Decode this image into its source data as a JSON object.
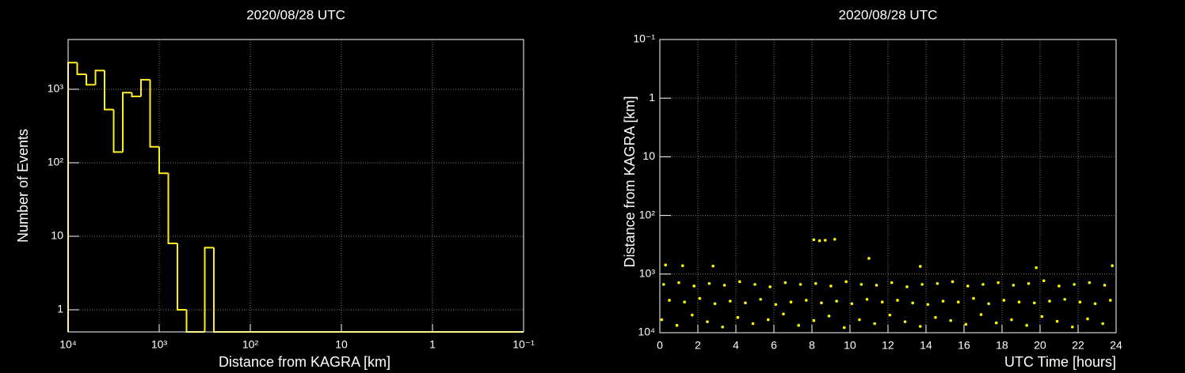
{
  "chart_data": [
    {
      "type": "histogram",
      "title": "2020/08/28 UTC",
      "x_label": "Distance from KAGRA [km]",
      "y_label": "Number of Events",
      "xlog": true,
      "ylog": true,
      "grid": true,
      "color": "#ffee22",
      "xlim": [
        10000,
        0.1
      ],
      "ylim": [
        0.5,
        4750
      ],
      "xticks": [
        {
          "value": 10000,
          "label": "10⁴"
        },
        {
          "value": 1000,
          "label": "10³"
        },
        {
          "value": 100,
          "label": "10²"
        },
        10,
        1,
        {
          "value": 0.1,
          "label": "10⁻¹"
        }
      ],
      "yticks": [
        1,
        10,
        {
          "value": 100,
          "label": "10²"
        },
        {
          "value": 1000,
          "label": "10³"
        }
      ],
      "bins": [
        10000,
        7943,
        6310,
        5012,
        3981,
        3162,
        2512,
        1995,
        1585,
        1259,
        1000,
        794.3,
        631,
        501.2,
        398.1,
        316.2,
        251.2,
        199.5,
        158.5,
        125.9,
        100,
        79.43,
        63.1,
        50.12,
        39.81,
        31.62,
        25.12,
        19.95,
        15.85,
        12.59,
        10,
        7.943,
        6.31,
        5.012,
        3.981,
        3.162,
        2.512,
        1.995,
        1.585,
        1.259,
        1,
        0.7943,
        0.631,
        0.5012,
        0.3981,
        0.3162,
        0.2512,
        0.1995,
        0.1585,
        0.1259,
        0.1
      ],
      "values": [
        2300,
        1600,
        1150,
        1800,
        530,
        140,
        900,
        800,
        1350,
        165,
        72,
        8,
        1,
        0,
        0,
        7,
        0,
        0,
        0,
        0,
        0,
        0,
        0,
        0,
        0,
        0,
        0,
        0,
        0,
        0,
        0,
        0,
        0,
        0,
        0,
        0,
        0,
        0,
        0,
        0,
        0,
        0,
        0,
        0,
        0,
        0,
        0,
        0,
        0,
        0
      ]
    },
    {
      "type": "scatter",
      "title": "2020/08/28 UTC",
      "x_label": "UTC Time [hours]",
      "y_label": "Distance from KAGRA [km]",
      "xlog": false,
      "ylog": true,
      "grid": true,
      "color": "#ffff00",
      "xlim": [
        0,
        24
      ],
      "ylim": [
        10000,
        0.1
      ],
      "xticks": [
        0,
        2,
        4,
        6,
        8,
        10,
        12,
        14,
        16,
        18,
        20,
        22,
        24
      ],
      "yticks": [
        {
          "value": 0.1,
          "label": "10⁻¹"
        },
        1,
        10,
        {
          "value": 100,
          "label": "10²"
        },
        {
          "value": 1000,
          "label": "10³"
        },
        {
          "value": 10000,
          "label": "10⁴"
        }
      ],
      "x": [
        0.2,
        1.0,
        1.8,
        2.6,
        3.4,
        4.2,
        5.0,
        5.8,
        6.6,
        7.4,
        8.2,
        9.0,
        9.8,
        10.6,
        11.4,
        12.2,
        13.0,
        13.8,
        14.6,
        15.4,
        16.2,
        17.0,
        17.8,
        18.6,
        19.4,
        20.2,
        21.0,
        21.8,
        22.6,
        23.4,
        0.5,
        1.3,
        2.1,
        2.9,
        3.7,
        4.5,
        5.3,
        6.1,
        6.9,
        7.7,
        8.5,
        9.3,
        10.1,
        10.9,
        11.7,
        12.5,
        13.3,
        14.1,
        14.9,
        15.7,
        16.5,
        17.3,
        18.1,
        18.9,
        19.7,
        20.5,
        21.3,
        22.1,
        22.9,
        23.7,
        0.1,
        0.9,
        1.7,
        2.5,
        3.3,
        4.1,
        4.9,
        5.7,
        6.5,
        7.3,
        8.1,
        8.9,
        9.7,
        10.5,
        11.3,
        12.1,
        12.9,
        13.7,
        14.5,
        15.3,
        16.1,
        16.9,
        17.7,
        18.5,
        19.3,
        20.1,
        20.9,
        21.7,
        22.5,
        23.3,
        0.3,
        1.2,
        2.8,
        8.1,
        8.4,
        8.7,
        9.2,
        11.0,
        13.7,
        19.8,
        23.8
      ],
      "y": [
        1500,
        1400,
        1600,
        1450,
        1550,
        1350,
        1500,
        1650,
        1400,
        1500,
        1450,
        1600,
        1350,
        1500,
        1550,
        1400,
        1650,
        1500,
        1450,
        1350,
        1600,
        1500,
        1400,
        1550,
        1450,
        1300,
        1600,
        1500,
        1400,
        1550,
        2800,
        3000,
        2600,
        3200,
        2900,
        3100,
        2700,
        3300,
        3000,
        2800,
        3100,
        2900,
        3200,
        2700,
        3000,
        2800,
        3100,
        3300,
        2900,
        3000,
        2600,
        3200,
        2800,
        3000,
        3100,
        2900,
        2700,
        3000,
        3200,
        2800,
        6000,
        7500,
        5000,
        6500,
        8000,
        5500,
        7000,
        6000,
        4800,
        7500,
        6200,
        5200,
        8200,
        6000,
        7000,
        5000,
        6500,
        7800,
        5500,
        6200,
        7200,
        4900,
        6800,
        6000,
        7500,
        5300,
        6400,
        8000,
        5800,
        7000,
        700,
        720,
        730,
        260,
        270,
        265,
        255,
        540,
        740,
        780,
        720
      ]
    }
  ]
}
